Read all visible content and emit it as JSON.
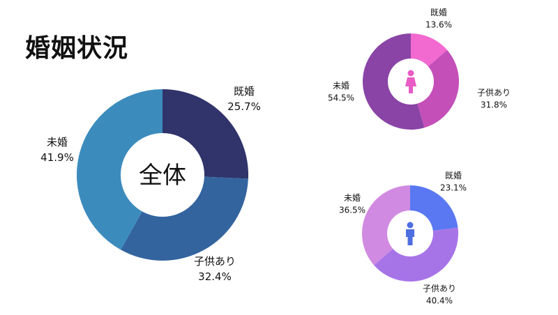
{
  "title": "婚姻状況",
  "chart_data": [
    {
      "type": "donut",
      "center_label": "全体",
      "center_icon": "",
      "slices": [
        {
          "label": "既婚",
          "value": 25.7,
          "display": "25.7%",
          "color": "#30346b"
        },
        {
          "label": "子供あり",
          "value": 32.4,
          "display": "32.4%",
          "color": "#33649e"
        },
        {
          "label": "未婚",
          "value": 41.9,
          "display": "41.9%",
          "color": "#3c8bbd"
        }
      ]
    },
    {
      "type": "donut",
      "center_label": "",
      "center_icon": "female-person-icon",
      "icon_color": "#e85cc4",
      "slices": [
        {
          "label": "既婚",
          "value": 13.6,
          "display": "13.6%",
          "color": "#f26ad0"
        },
        {
          "label": "子供あり",
          "value": 31.8,
          "display": "31.8%",
          "color": "#c44fb9"
        },
        {
          "label": "未婚",
          "value": 54.5,
          "display": "54.5%",
          "color": "#8a44a6"
        }
      ]
    },
    {
      "type": "donut",
      "center_label": "",
      "center_icon": "male-person-icon",
      "icon_color": "#4f6ee0",
      "slices": [
        {
          "label": "既婚",
          "value": 23.1,
          "display": "23.1%",
          "color": "#5a78f2"
        },
        {
          "label": "子供あり",
          "value": 40.4,
          "display": "40.4%",
          "color": "#a774e8"
        },
        {
          "label": "未婚",
          "value": 36.5,
          "display": "36.5%",
          "color": "#d18ae2"
        }
      ]
    }
  ]
}
